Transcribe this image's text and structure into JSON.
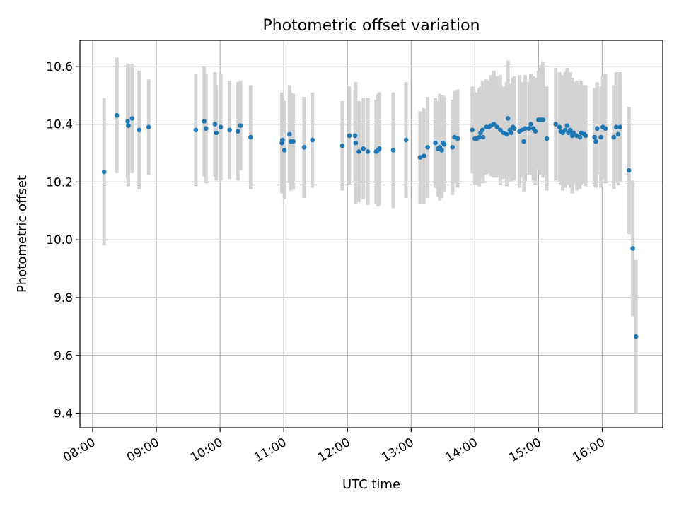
{
  "chart_data": {
    "type": "scatter",
    "title": "Photometric offset variation",
    "xlabel": "UTC time",
    "ylabel": "Photometric offset",
    "x_unit": "hours UTC",
    "xlim": [
      7.8,
      16.95
    ],
    "ylim": [
      9.35,
      10.69
    ],
    "xticks": [
      8,
      9,
      10,
      11,
      12,
      13,
      14,
      15,
      16
    ],
    "xtick_labels": [
      "08:00",
      "09:00",
      "10:00",
      "11:00",
      "12:00",
      "13:00",
      "14:00",
      "15:00",
      "16:00"
    ],
    "yticks": [
      9.4,
      9.6,
      9.8,
      10.0,
      10.2,
      10.4,
      10.6
    ],
    "ytick_labels": [
      "9.4",
      "9.6",
      "9.8",
      "10.0",
      "10.2",
      "10.4",
      "10.6"
    ],
    "grid": true,
    "colors": {
      "point": "#1f77b4",
      "errorbar": "#d3d3d3",
      "grid": "#b0b0b0"
    },
    "series": [
      {
        "x": [
          8.18,
          8.38,
          8.55,
          8.56,
          8.62,
          8.73,
          8.88,
          9.62,
          9.75,
          9.78,
          9.92,
          9.94,
          10.01,
          10.15,
          10.28,
          10.32,
          10.48,
          10.97,
          10.98,
          11.01,
          11.09,
          11.11,
          11.15,
          11.32,
          11.45,
          11.92,
          12.03,
          12.12,
          12.13,
          12.18,
          12.25,
          12.32,
          12.45,
          12.48,
          12.5,
          12.72,
          12.92,
          13.14,
          13.2,
          13.26,
          13.38,
          13.42,
          13.45,
          13.48,
          13.5,
          13.52,
          13.65,
          13.68,
          13.73,
          13.96,
          14.0,
          14.03,
          14.07,
          14.09,
          14.12,
          14.13,
          14.18,
          14.22,
          14.25,
          14.3,
          14.35,
          14.4,
          14.45,
          14.5,
          14.52,
          14.55,
          14.57,
          14.6,
          14.62,
          14.7,
          14.74,
          14.77,
          14.79,
          14.85,
          14.88,
          14.92,
          14.95,
          15.0,
          15.03,
          15.07,
          15.13,
          15.27,
          15.33,
          15.35,
          15.38,
          15.42,
          15.45,
          15.47,
          15.5,
          15.53,
          15.55,
          15.6,
          15.65,
          15.67,
          15.72,
          15.74,
          15.88,
          15.9,
          15.92,
          15.98,
          16.01,
          16.05,
          16.18,
          16.22,
          16.25,
          16.28,
          16.42,
          16.48,
          16.53
        ],
        "y": [
          10.235,
          10.43,
          10.41,
          10.395,
          10.42,
          10.38,
          10.39,
          10.38,
          10.41,
          10.385,
          10.4,
          10.37,
          10.39,
          10.38,
          10.375,
          10.395,
          10.355,
          10.335,
          10.345,
          10.31,
          10.365,
          10.34,
          10.34,
          10.32,
          10.345,
          10.325,
          10.36,
          10.36,
          10.335,
          10.305,
          10.315,
          10.305,
          10.305,
          10.31,
          10.315,
          10.31,
          10.345,
          10.285,
          10.29,
          10.32,
          10.335,
          10.315,
          10.32,
          10.31,
          10.335,
          10.33,
          10.32,
          10.355,
          10.35,
          10.38,
          10.35,
          10.35,
          10.355,
          10.37,
          10.38,
          10.355,
          10.39,
          10.39,
          10.395,
          10.4,
          10.39,
          10.38,
          10.37,
          10.365,
          10.42,
          10.38,
          10.37,
          10.39,
          10.385,
          10.375,
          10.38,
          10.34,
          10.385,
          10.385,
          10.4,
          10.385,
          10.375,
          10.415,
          10.415,
          10.415,
          10.35,
          10.4,
          10.39,
          10.375,
          10.37,
          10.38,
          10.395,
          10.37,
          10.38,
          10.36,
          10.37,
          10.36,
          10.355,
          10.37,
          10.365,
          10.36,
          10.355,
          10.34,
          10.385,
          10.355,
          10.39,
          10.385,
          10.355,
          10.39,
          10.365,
          10.39,
          10.24,
          9.97,
          9.665
        ],
        "yerr": [
          0.255,
          0.2,
          0.2,
          0.21,
          0.19,
          0.205,
          0.165,
          0.195,
          0.19,
          0.19,
          0.18,
          0.165,
          0.185,
          0.17,
          0.17,
          0.155,
          0.18,
          0.175,
          0.16,
          0.17,
          0.17,
          0.17,
          0.165,
          0.175,
          0.165,
          0.155,
          0.17,
          0.155,
          0.21,
          0.175,
          0.175,
          0.185,
          0.18,
          0.195,
          0.195,
          0.2,
          0.2,
          0.16,
          0.165,
          0.175,
          0.155,
          0.165,
          0.185,
          0.165,
          0.165,
          0.165,
          0.165,
          0.16,
          0.17,
          0.15,
          0.16,
          0.16,
          0.17,
          0.16,
          0.17,
          0.16,
          0.165,
          0.16,
          0.175,
          0.185,
          0.175,
          0.19,
          0.16,
          0.18,
          0.2,
          0.16,
          0.17,
          0.17,
          0.18,
          0.195,
          0.165,
          0.175,
          0.185,
          0.16,
          0.175,
          0.18,
          0.185,
          0.17,
          0.19,
          0.2,
          0.18,
          0.195,
          0.19,
          0.185,
          0.2,
          0.2,
          0.2,
          0.18,
          0.2,
          0.2,
          0.175,
          0.19,
          0.18,
          0.18,
          0.17,
          0.175,
          0.17,
          0.16,
          0.16,
          0.175,
          0.18,
          0.19,
          0.18,
          0.19,
          0.175,
          0.19,
          0.22,
          0.235,
          0.265
        ]
      }
    ]
  }
}
